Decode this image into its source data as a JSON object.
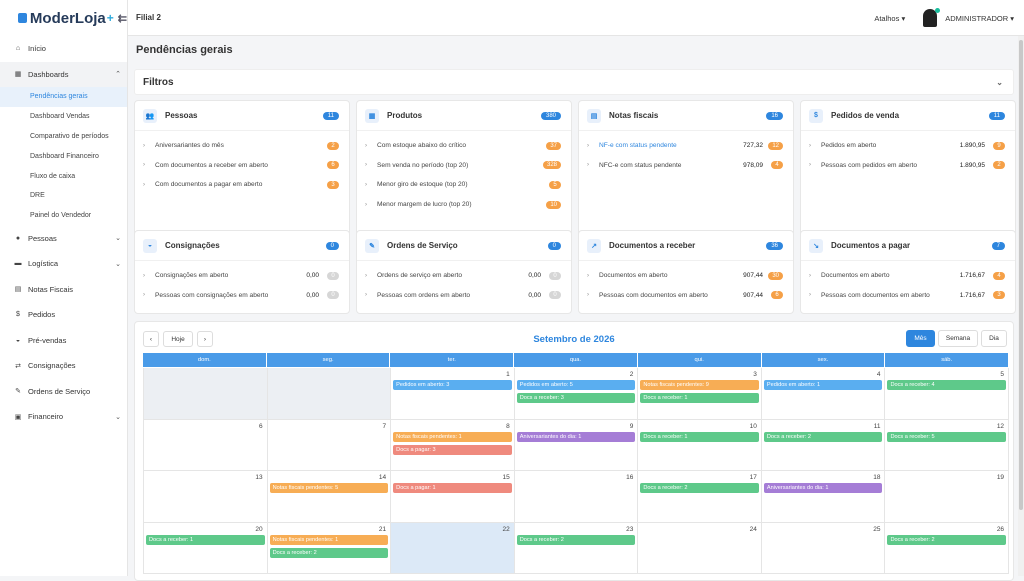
{
  "brand": {
    "name": "ModerLoja",
    "plus": "+",
    "collapse_icon": "collapse-icon"
  },
  "sidebar": {
    "items": [
      {
        "label": "Início",
        "icon": "home-icon"
      },
      {
        "label": "Dashboards",
        "icon": "dashboard-icon",
        "sub": [
          "Pendências gerais",
          "Dashboard Vendas",
          "Comparativo de períodos",
          "Dashboard Financeiro",
          "Fluxo de caixa",
          "DRE",
          "Painel do Vendedor"
        ]
      },
      {
        "label": "Pessoas",
        "icon": "user-icon"
      },
      {
        "label": "Logística",
        "icon": "truck-icon"
      },
      {
        "label": "Notas Fiscais",
        "icon": "invoice-icon"
      },
      {
        "label": "Pedidos",
        "icon": "dollar-icon"
      },
      {
        "label": "Pré-vendas",
        "icon": "basket-icon"
      },
      {
        "label": "Consignações",
        "icon": "exchange-icon"
      },
      {
        "label": "Ordens de Serviço",
        "icon": "wrench-icon"
      },
      {
        "label": "Financeiro",
        "icon": "finance-icon"
      }
    ]
  },
  "topbar": {
    "branch": "Filial 2",
    "shortcuts": "Atalhos",
    "user": "ADMINISTRADOR"
  },
  "page": {
    "title": "Pendências gerais",
    "filters": "Filtros"
  },
  "cards": [
    {
      "title": "Pessoas",
      "badge": "11",
      "rows": [
        {
          "label": "Aniversariantes do mês",
          "badge": "2"
        },
        {
          "label": "Com documentos a receber em aberto",
          "badge": "6"
        },
        {
          "label": "Com documentos a pagar em aberto",
          "badge": "3"
        }
      ]
    },
    {
      "title": "Produtos",
      "badge": "380",
      "rows": [
        {
          "label": "Com estoque abaixo do crítico",
          "badge": "37"
        },
        {
          "label": "Sem venda no período (top 20)",
          "badge": "328"
        },
        {
          "label": "Menor giro de estoque (top 20)",
          "badge": "5"
        },
        {
          "label": "Menor margem de lucro (top 20)",
          "badge": "10"
        }
      ]
    },
    {
      "title": "Notas fiscais",
      "badge": "16",
      "rows": [
        {
          "label": "NF-e com status pendente",
          "value": "727,32",
          "badge": "12"
        },
        {
          "label": "NFC-e com status pendente",
          "value": "978,09",
          "badge": "4"
        }
      ]
    },
    {
      "title": "Pedidos de venda",
      "badge": "11",
      "rows": [
        {
          "label": "Pedidos em aberto",
          "value": "1.890,95",
          "badge": "9"
        },
        {
          "label": "Pessoas com pedidos em aberto",
          "value": "1.890,95",
          "badge": "2"
        }
      ]
    },
    {
      "title": "Consignações",
      "badge": "0",
      "rows": [
        {
          "label": "Consignações em aberto",
          "value": "0,00",
          "badge": "0"
        },
        {
          "label": "Pessoas com consignações em aberto",
          "value": "0,00",
          "badge": "0"
        }
      ]
    },
    {
      "title": "Ordens de Serviço",
      "badge": "0",
      "rows": [
        {
          "label": "Ordens de serviço em aberto",
          "value": "0,00",
          "badge": "0"
        },
        {
          "label": "Pessoas com ordens em aberto",
          "value": "0,00",
          "badge": "0"
        }
      ]
    },
    {
      "title": "Documentos a receber",
      "badge": "36",
      "rows": [
        {
          "label": "Documentos em aberto",
          "value": "907,44",
          "badge": "30"
        },
        {
          "label": "Pessoas com documentos em aberto",
          "value": "907,44",
          "badge": "6"
        }
      ]
    },
    {
      "title": "Documentos a pagar",
      "badge": "7",
      "rows": [
        {
          "label": "Documentos em aberto",
          "value": "1.716,67",
          "badge": "4"
        },
        {
          "label": "Pessoas com documentos em aberto",
          "value": "1.716,67",
          "badge": "3"
        }
      ]
    }
  ],
  "calendar": {
    "title": "Setembro de 2026",
    "today_btn": "Hoje",
    "prev": "‹",
    "next": "›",
    "views": [
      "Mês",
      "Semana",
      "Dia"
    ],
    "weekdays": [
      "dom.",
      "seg.",
      "ter.",
      "qua.",
      "qui.",
      "sex.",
      "sáb."
    ],
    "weeks": [
      [
        {
          "d": ""
        },
        {
          "d": ""
        },
        {
          "d": "1",
          "ev": [
            [
              "Pedidos em aberto: 3",
              "blue"
            ]
          ]
        },
        {
          "d": "2",
          "ev": [
            [
              "Pedidos em aberto: 5",
              "blue"
            ],
            [
              "Docs a receber: 3",
              "green"
            ]
          ]
        },
        {
          "d": "3",
          "ev": [
            [
              "Notas fiscais pendentes: 9",
              "orange2"
            ],
            [
              "Docs a receber: 1",
              "green"
            ]
          ]
        },
        {
          "d": "4",
          "ev": [
            [
              "Pedidos em aberto: 1",
              "blue"
            ]
          ]
        },
        {
          "d": "5",
          "ev": [
            [
              "Docs a receber: 4",
              "green"
            ]
          ]
        }
      ],
      [
        {
          "d": "6"
        },
        {
          "d": "7"
        },
        {
          "d": "8",
          "ev": [
            [
              "Notas fiscais pendentes: 1",
              "orange2"
            ],
            [
              "Docs a pagar: 3",
              "red"
            ]
          ]
        },
        {
          "d": "9",
          "ev": [
            [
              "Aniversariantes do dia: 1",
              "purple"
            ]
          ]
        },
        {
          "d": "10",
          "ev": [
            [
              "Docs a receber: 1",
              "green"
            ]
          ]
        },
        {
          "d": "11",
          "ev": [
            [
              "Docs a receber: 2",
              "green"
            ]
          ]
        },
        {
          "d": "12",
          "ev": [
            [
              "Docs a receber: 5",
              "green"
            ]
          ]
        }
      ],
      [
        {
          "d": "13"
        },
        {
          "d": "14",
          "ev": [
            [
              "Notas fiscais pendentes: 5",
              "orange2"
            ]
          ]
        },
        {
          "d": "15",
          "ev": [
            [
              "Docs a pagar: 1",
              "red"
            ]
          ]
        },
        {
          "d": "16"
        },
        {
          "d": "17",
          "ev": [
            [
              "Docs a receber: 2",
              "green"
            ]
          ]
        },
        {
          "d": "18",
          "ev": [
            [
              "Aniversariantes do dia: 1",
              "purple"
            ]
          ]
        },
        {
          "d": "19"
        }
      ],
      [
        {
          "d": "20",
          "ev": [
            [
              "Docs a receber: 1",
              "green"
            ]
          ]
        },
        {
          "d": "21",
          "ev": [
            [
              "Notas fiscais pendentes: 1",
              "orange2"
            ],
            [
              "Docs a receber: 2",
              "green"
            ]
          ]
        },
        {
          "d": "22",
          "today": true
        },
        {
          "d": "23",
          "ev": [
            [
              "Docs a receber: 2",
              "green"
            ]
          ]
        },
        {
          "d": "24"
        },
        {
          "d": "25"
        },
        {
          "d": "26",
          "ev": [
            [
              "Docs a receber: 2",
              "green"
            ]
          ]
        }
      ]
    ]
  }
}
